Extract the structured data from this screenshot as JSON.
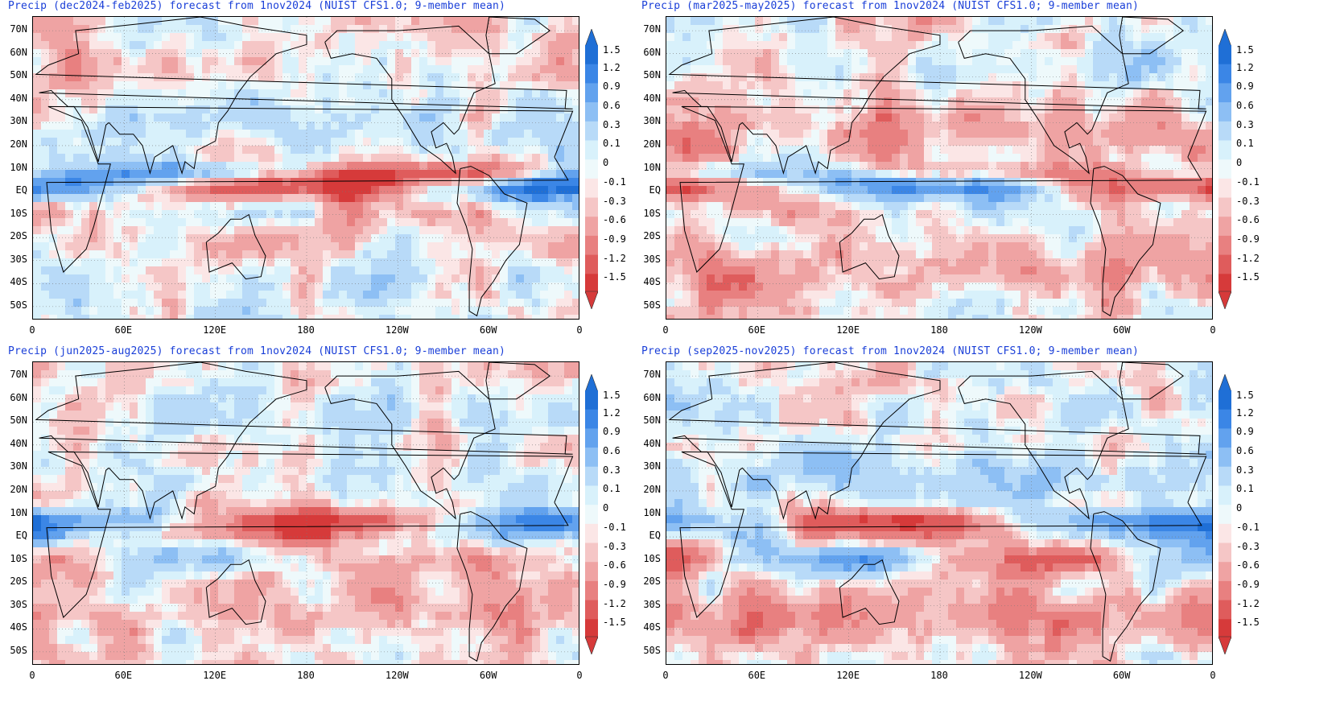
{
  "panels": [
    {
      "title": "Precip (dec2024-feb2025) forecast from 1nov2024 (NUIST CFS1.0; 9-member mean)"
    },
    {
      "title": "Precip (mar2025-may2025) forecast from 1nov2024 (NUIST CFS1.0; 9-member mean)"
    },
    {
      "title": "Precip (jun2025-aug2025) forecast from 1nov2024 (NUIST CFS1.0; 9-member mean)"
    },
    {
      "title": "Precip (sep2025-nov2025) forecast from 1nov2024 (NUIST CFS1.0; 9-member mean)"
    }
  ],
  "lat_labels": [
    "70N",
    "60N",
    "50N",
    "40N",
    "30N",
    "20N",
    "10N",
    "EQ",
    "10S",
    "20S",
    "30S",
    "40S",
    "50S"
  ],
  "lon_labels": [
    "0",
    "60E",
    "120E",
    "180",
    "120W",
    "60W",
    "0"
  ],
  "colorbar": {
    "labels": [
      "1.5",
      "1.2",
      "0.9",
      "0.6",
      "0.3",
      "0.1",
      "0",
      "-0.1",
      "-0.3",
      "-0.6",
      "-0.9",
      "-1.2",
      "-1.5"
    ],
    "colors": [
      "#1f6fd6",
      "#3b86e6",
      "#62a2ee",
      "#8dbff4",
      "#b8daf8",
      "#d8f1fb",
      "#eef9fb",
      "#fbe6e6",
      "#f5c6c6",
      "#efa3a3",
      "#e88080",
      "#df5c5c",
      "#d63a3a"
    ]
  },
  "colors": {
    "title": "#1a3fd8",
    "wet": "#3b86e6",
    "dry": "#df5c5c",
    "neutral": "#eef9fb"
  }
}
